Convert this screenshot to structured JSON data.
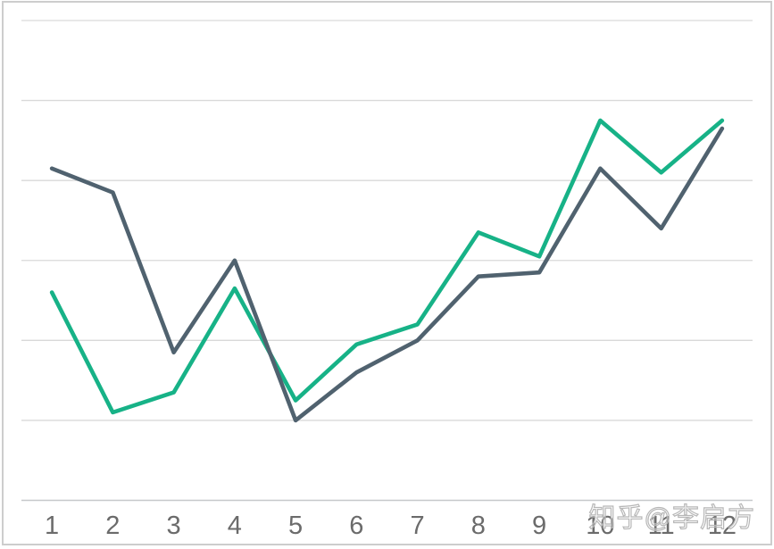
{
  "watermark": {
    "text": "知乎@李启方"
  },
  "colors": {
    "background": "#ffffff",
    "frame_border": "#cdcdcd",
    "gridline": "#d9d9d9",
    "axis_line": "#c6c8ca",
    "tick_label": "#6b6b6b",
    "watermark": "#b7b7b7",
    "series_teal": "#17b287",
    "series_slate": "#50626f"
  },
  "chart_data": {
    "type": "line",
    "title": "",
    "xlabel": "",
    "ylabel": "",
    "categories": [
      "1",
      "2",
      "3",
      "4",
      "5",
      "6",
      "7",
      "8",
      "9",
      "10",
      "11",
      "12"
    ],
    "series": [
      {
        "id": "teal",
        "label": "",
        "color": "#17b287",
        "values": [
          2.6,
          1.1,
          1.35,
          2.65,
          1.25,
          1.95,
          2.2,
          3.35,
          3.05,
          4.75,
          4.1,
          4.75
        ]
      },
      {
        "id": "slate",
        "label": "",
        "color": "#50626f",
        "values": [
          4.15,
          3.85,
          1.85,
          3.0,
          1.0,
          1.6,
          2.0,
          2.8,
          2.85,
          4.15,
          3.4,
          4.65
        ]
      }
    ],
    "ylim": [
      0,
      6
    ],
    "y_gridline_step": 1,
    "grid": "horizontal",
    "legend": "none",
    "x_axis_labels_visible": true,
    "y_axis_labels_visible": false,
    "draw_order": [
      "teal",
      "slate"
    ]
  }
}
